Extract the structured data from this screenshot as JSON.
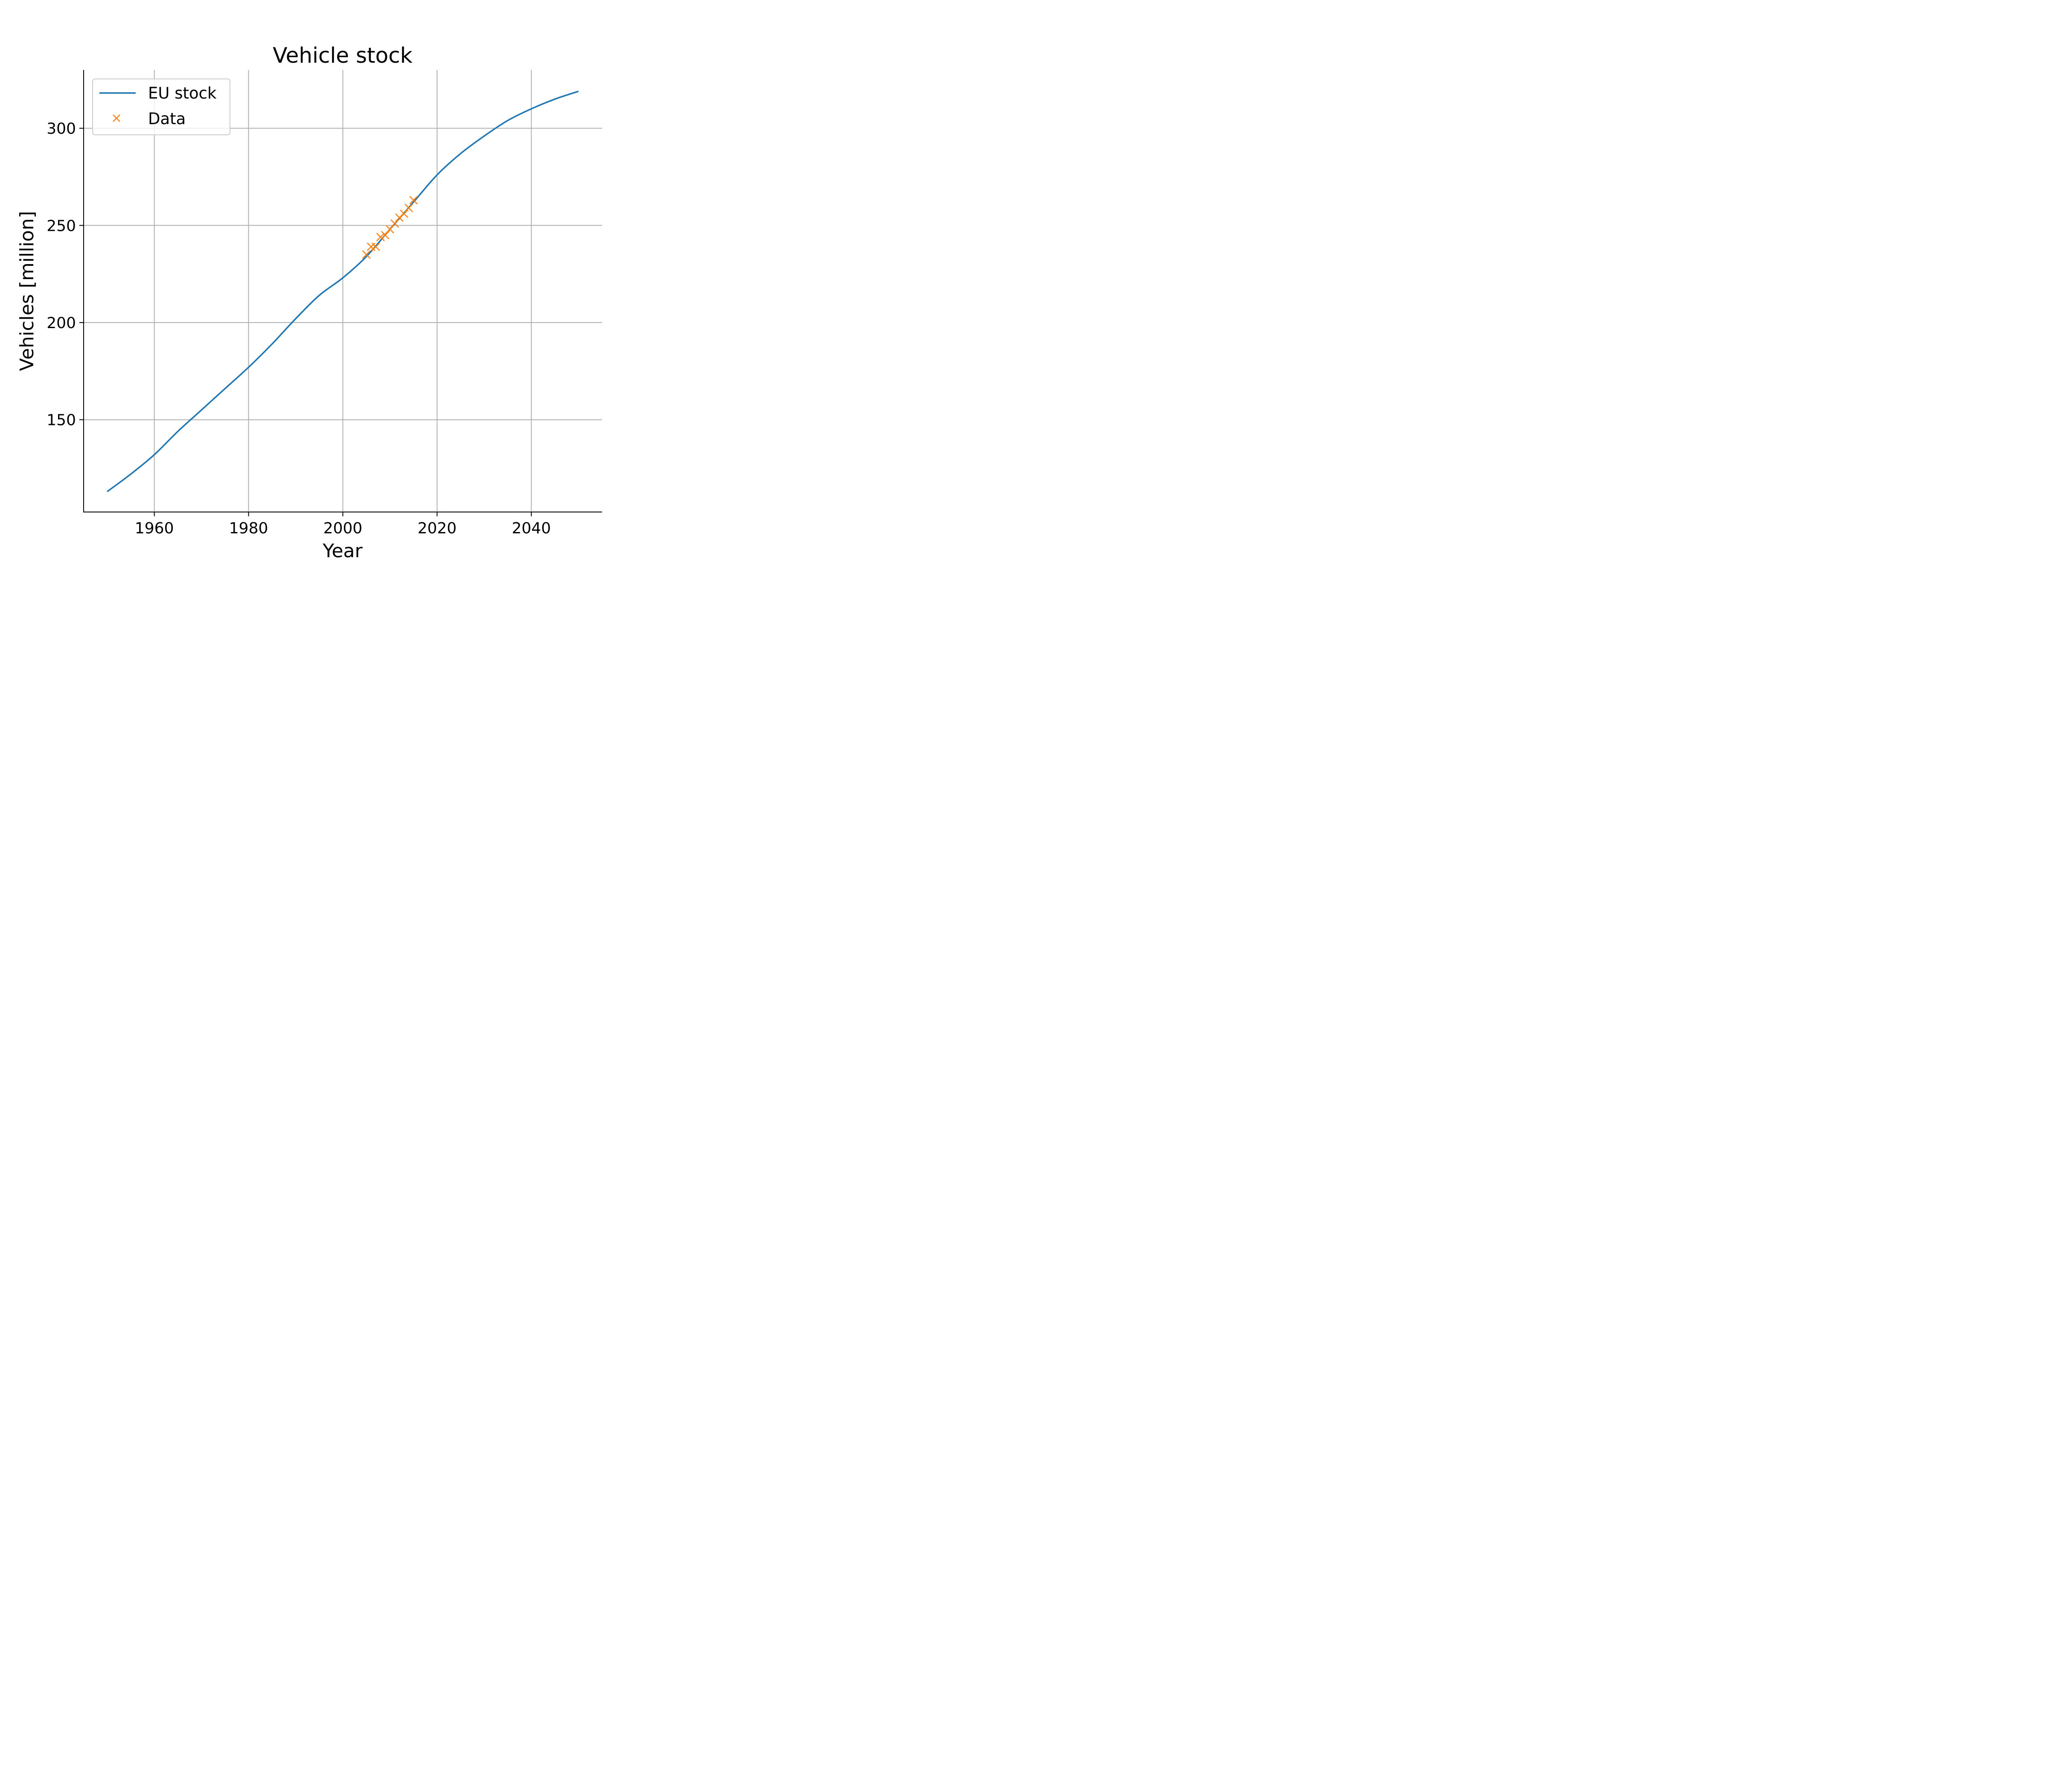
{
  "chart_data": {
    "type": "line",
    "title": "Vehicle stock",
    "xlabel": "Year",
    "ylabel": "Vehicles [million]",
    "xlim": [
      1945,
      2055
    ],
    "ylim": [
      102.5,
      330
    ],
    "xticks": [
      1960,
      1980,
      2000,
      2020,
      2040
    ],
    "yticks": [
      150,
      200,
      250,
      300
    ],
    "grid": true,
    "legend": "top-left",
    "colors": {
      "line": "#1f77b4",
      "markers": "#ff7f0e"
    },
    "series": [
      {
        "name": "EU stock",
        "type": "line",
        "x": [
          1950,
          1955,
          1960,
          1965,
          1970,
          1975,
          1980,
          1985,
          1990,
          1995,
          2000,
          2005,
          2010,
          2015,
          2020,
          2025,
          2030,
          2035,
          2040,
          2045,
          2050
        ],
        "y": [
          113,
          122,
          132,
          144,
          155,
          166,
          177,
          189,
          202,
          214,
          223,
          234,
          248,
          262,
          276,
          287,
          296,
          304,
          310,
          315,
          319
        ]
      },
      {
        "name": "Data",
        "type": "scatter",
        "marker": "x",
        "x": [
          2005,
          2006,
          2007,
          2008,
          2009,
          2010,
          2011,
          2012,
          2013,
          2014,
          2015
        ],
        "y": [
          235,
          239,
          239,
          244,
          245,
          248,
          251,
          254,
          256,
          259,
          263
        ]
      }
    ]
  }
}
